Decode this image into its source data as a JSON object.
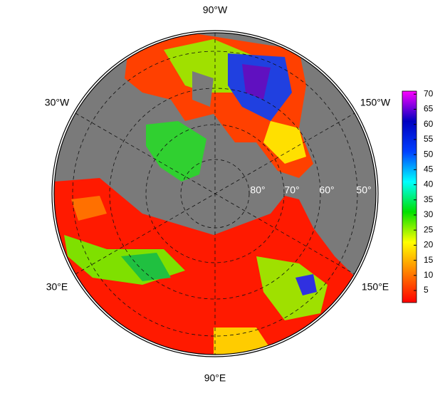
{
  "map": {
    "longitude_labels": [
      "90°W",
      "30°W",
      "150°W",
      "30°E",
      "150°E",
      "90°E"
    ],
    "latitude_labels": [
      "80°",
      "70°",
      "60°",
      "50°"
    ],
    "colorbar": {
      "lim": [
        1,
        71
      ],
      "ticks": [
        5,
        10,
        15,
        20,
        25,
        30,
        35,
        40,
        45,
        50,
        55,
        60,
        65,
        70
      ],
      "colors": [
        "#ff0000",
        "#ff8000",
        "#ffff00",
        "#00e000",
        "#00ffff",
        "#0040ff",
        "#0000c0",
        "#ff00ff"
      ]
    }
  }
}
